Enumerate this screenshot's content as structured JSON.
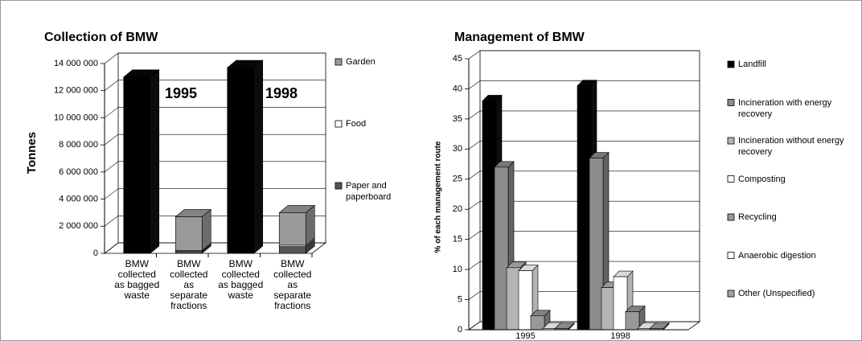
{
  "chart_data": [
    {
      "type": "bar",
      "stacked": true,
      "title": "Collection of BMW",
      "y_label": "Tonnes",
      "categories": [
        "BMW collected as bagged waste",
        "BMW collected as separate fractions",
        "BMW collected as bagged waste",
        "BMW collected as separate fractions"
      ],
      "annotations": [
        "1995",
        "1998"
      ],
      "series": [
        {
          "color": "#000000",
          "values": [
            13000000,
            null,
            13700000,
            null
          ]
        },
        {
          "name": "Paper and paperboard",
          "color": "#555555",
          "values": [
            null,
            150000,
            null,
            500000
          ]
        },
        {
          "name": "Food",
          "color": "#ffffff",
          "values": [
            null,
            50000,
            null,
            100000
          ]
        },
        {
          "name": "Garden",
          "color": "#9a9a9a",
          "values": [
            null,
            2500000,
            null,
            2400000
          ]
        }
      ],
      "ylim": [
        0,
        14000000
      ],
      "yticks": [
        0,
        {
          "value": 2000000,
          "label": "2 000 000"
        },
        {
          "value": 4000000,
          "label": "4 000 000"
        },
        {
          "value": 6000000,
          "label": "6 000 000"
        },
        {
          "value": 8000000,
          "label": "8 000 000"
        },
        {
          "value": 10000000,
          "label": "10 000 000"
        },
        {
          "value": 12000000,
          "label": "12 000 000"
        },
        {
          "value": 14000000,
          "label": "14 000 000"
        }
      ],
      "grid": true
    },
    {
      "type": "bar",
      "stacked": false,
      "title": "Management of BMW",
      "y_label": "% of each management route",
      "categories": [
        "1995",
        "1998"
      ],
      "series": [
        {
          "name": "Landfill",
          "color": "#000000",
          "values": [
            38,
            40.5
          ]
        },
        {
          "name": "Incineration with energy recovery",
          "color": "#8c8c8c",
          "values": [
            27,
            28.5
          ]
        },
        {
          "name": "Incineration without energy recovery",
          "color": "#b4b4b4",
          "values": [
            10.3,
            7
          ]
        },
        {
          "name": "Composting",
          "color": "#ffffff",
          "values": [
            9.8,
            8.8
          ]
        },
        {
          "name": "Recycling",
          "color": "#999999",
          "values": [
            2.3,
            3
          ]
        },
        {
          "name": "Anaerobic digestion",
          "color": "#ffffff",
          "values": [
            0.2,
            0.2
          ]
        },
        {
          "name": "Other (Unspecified)",
          "color": "#a0a0a0",
          "values": [
            0.2,
            0.2
          ]
        }
      ],
      "ylim": [
        0,
        45
      ],
      "yticks": [
        0,
        5,
        10,
        15,
        20,
        25,
        30,
        35,
        40,
        45
      ],
      "grid": true
    }
  ]
}
